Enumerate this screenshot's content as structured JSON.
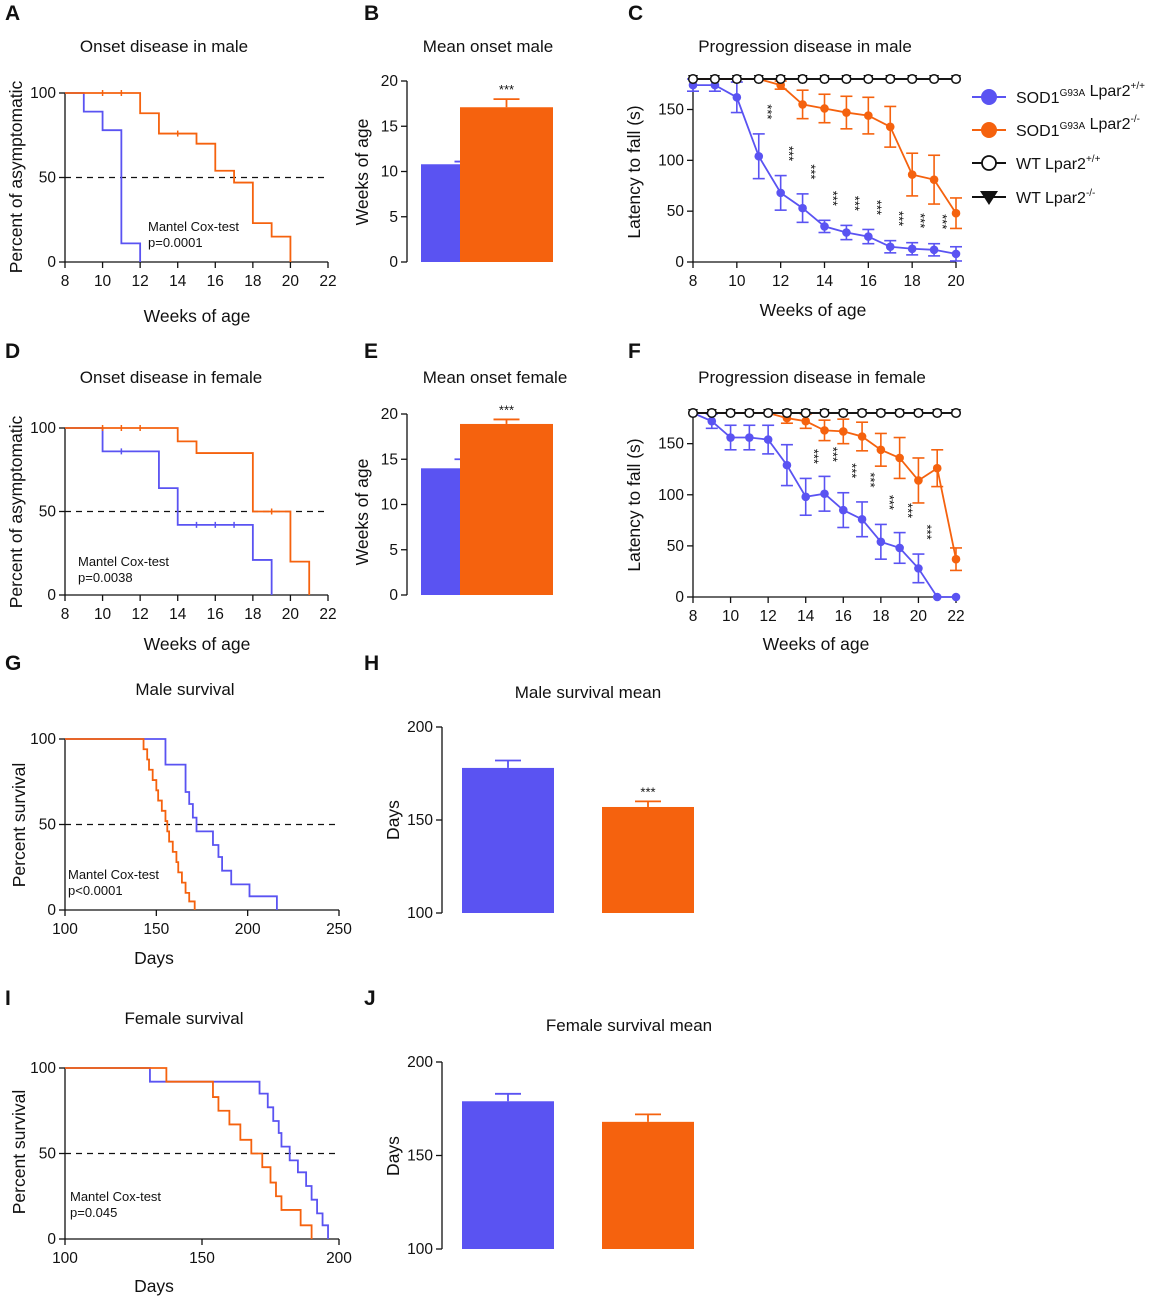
{
  "colors": {
    "blue": "#5a53f2",
    "orange": "#f5620e",
    "black": "#111111"
  },
  "legend": {
    "items": [
      {
        "prefix": "SOD1",
        "sup1": "G93A",
        "mid": " Lpar2",
        "sup2": "+/+",
        "color": "#5a53f2",
        "marker": "filled-circle"
      },
      {
        "prefix": "SOD1",
        "sup1": "G93A",
        "mid": " Lpar2",
        "sup2": "-/-",
        "color": "#f5620e",
        "marker": "filled-circle"
      },
      {
        "prefix": "WT Lpar2",
        "sup1": "",
        "mid": "",
        "sup2": "+/+",
        "color": "#111111",
        "marker": "open-circle"
      },
      {
        "prefix": "WT Lpar2",
        "sup1": "",
        "mid": "",
        "sup2": "-/-",
        "color": "#111111",
        "marker": "filled-triangle-down"
      }
    ]
  },
  "chart_data": [
    {
      "id": "A",
      "letter": "A",
      "type": "line",
      "subtype": "kaplan-meier",
      "title": "Onset disease in male",
      "xlabel": "Weeks of age",
      "ylabel": "Percent of asymptomatic",
      "xlim": [
        8,
        22
      ],
      "ylim": [
        0,
        100
      ],
      "xticks": [
        "8",
        "10",
        "12",
        "14",
        "16",
        "18",
        "20",
        "22"
      ],
      "yticks": [
        "0",
        "50",
        "100"
      ],
      "reference_line": 50,
      "annotation": [
        "Mantel Cox-test",
        "p=0.0001"
      ],
      "series": [
        {
          "name": "SOD1G93A Lpar2+/+",
          "color": "blue",
          "steps": [
            [
              8,
              100
            ],
            [
              9,
              89
            ],
            [
              10,
              78
            ],
            [
              11,
              11
            ],
            [
              12,
              0
            ]
          ],
          "censor": []
        },
        {
          "name": "SOD1G93A Lpar2-/-",
          "color": "orange",
          "steps": [
            [
              8,
              100
            ],
            [
              12,
              88
            ],
            [
              13,
              76
            ],
            [
              15,
              70
            ],
            [
              16,
              54
            ],
            [
              17,
              47
            ],
            [
              18,
              23
            ],
            [
              19,
              15
            ],
            [
              20,
              0
            ]
          ],
          "censor": [
            [
              10,
              100
            ],
            [
              11,
              100
            ],
            [
              14,
              76
            ]
          ]
        }
      ]
    },
    {
      "id": "B",
      "letter": "B",
      "type": "bar",
      "title": "Mean onset male",
      "xlabel": "",
      "ylabel": "Weeks of age",
      "ylim": [
        0,
        20
      ],
      "yticks": [
        "0",
        "5",
        "10",
        "15",
        "20"
      ],
      "bars": [
        {
          "name": "SOD1G93A Lpar2+/+",
          "color": "blue",
          "value": 10.8,
          "err": 0.3,
          "star": ""
        },
        {
          "name": "SOD1G93A Lpar2-/-",
          "color": "orange",
          "value": 17.1,
          "err": 0.9,
          "star": "***"
        }
      ]
    },
    {
      "id": "C",
      "letter": "C",
      "type": "line",
      "title": "Progression disease in male",
      "xlabel": "Weeks of age",
      "ylabel": "Latency to fall (s)",
      "xlim": [
        8,
        20
      ],
      "ylim": [
        0,
        180
      ],
      "xticks": [
        "8",
        "10",
        "12",
        "14",
        "16",
        "18",
        "20"
      ],
      "yticks": [
        "0",
        "50",
        "100",
        "150"
      ],
      "x": [
        8,
        9,
        10,
        11,
        12,
        13,
        14,
        15,
        16,
        17,
        18,
        19,
        20
      ],
      "series": [
        {
          "name": "WT Lpar2-/-",
          "color": "black",
          "marker": "filled-triangle-down",
          "values": [
            180,
            180,
            180,
            180,
            180,
            180,
            180,
            180,
            180,
            180,
            180,
            180,
            180
          ],
          "err": []
        },
        {
          "name": "WT Lpar2+/+",
          "color": "black",
          "marker": "open-circle",
          "values": [
            180,
            180,
            180,
            180,
            180,
            180,
            180,
            180,
            180,
            180,
            180,
            180,
            180
          ],
          "err": []
        },
        {
          "name": "SOD1G93A Lpar2-/-",
          "color": "orange",
          "marker": "filled-circle",
          "values": [
            180,
            180,
            180,
            180,
            174,
            155,
            151,
            147,
            144,
            133,
            86,
            81,
            48
          ],
          "err": [
            0,
            0,
            0,
            0,
            4,
            14,
            14,
            16,
            18,
            20,
            21,
            24,
            15
          ]
        },
        {
          "name": "SOD1G93A Lpar2+/+",
          "color": "blue",
          "marker": "filled-circle",
          "values": [
            174,
            174,
            162,
            104,
            68,
            53,
            35,
            29,
            25,
            15,
            13,
            12,
            8
          ],
          "err": [
            6,
            6,
            15,
            22,
            17,
            14,
            6,
            7,
            7,
            6,
            6,
            6,
            7
          ]
        }
      ],
      "star_label": "***",
      "stars_x": [
        11,
        12,
        13,
        14,
        15,
        16,
        17,
        18,
        19
      ]
    },
    {
      "id": "D",
      "letter": "D",
      "type": "line",
      "subtype": "kaplan-meier",
      "title": "Onset disease in female",
      "xlabel": "Weeks of age",
      "ylabel": "Percent of asymptomatic",
      "xlim": [
        8,
        22
      ],
      "ylim": [
        0,
        100
      ],
      "xticks": [
        "8",
        "10",
        "12",
        "14",
        "16",
        "18",
        "20",
        "22"
      ],
      "yticks": [
        "0",
        "50",
        "100"
      ],
      "reference_line": 50,
      "annotation": [
        "Mantel Cox-test",
        "p=0.0038"
      ],
      "series": [
        {
          "name": "SOD1G93A Lpar2+/+",
          "color": "blue",
          "steps": [
            [
              8,
              100
            ],
            [
              10,
              86
            ],
            [
              13,
              64
            ],
            [
              14,
              42
            ],
            [
              18,
              21
            ],
            [
              19,
              0
            ]
          ],
          "censor": [
            [
              11,
              86
            ],
            [
              15,
              42
            ],
            [
              16,
              42
            ],
            [
              17,
              42
            ]
          ]
        },
        {
          "name": "SOD1G93A Lpar2-/-",
          "color": "orange",
          "steps": [
            [
              8,
              100
            ],
            [
              14,
              92
            ],
            [
              15,
              85
            ],
            [
              18,
              50
            ],
            [
              20,
              20
            ],
            [
              21,
              0
            ]
          ],
          "censor": [
            [
              10,
              100
            ],
            [
              11,
              100
            ],
            [
              12,
              100
            ],
            [
              19,
              50
            ]
          ]
        }
      ]
    },
    {
      "id": "E",
      "letter": "E",
      "type": "bar",
      "title": "Mean onset female",
      "xlabel": "",
      "ylabel": "Weeks of age",
      "ylim": [
        0,
        20
      ],
      "yticks": [
        "0",
        "5",
        "10",
        "15",
        "20"
      ],
      "bars": [
        {
          "name": "SOD1G93A Lpar2+/+",
          "color": "blue",
          "value": 14.0,
          "err": 1.0,
          "star": ""
        },
        {
          "name": "SOD1G93A Lpar2-/-",
          "color": "orange",
          "value": 18.9,
          "err": 0.5,
          "star": "***"
        }
      ]
    },
    {
      "id": "F",
      "letter": "F",
      "type": "line",
      "title": "Progression disease in female",
      "xlabel": "Weeks of age",
      "ylabel": "Latency to fall (s)",
      "xlim": [
        8,
        22
      ],
      "ylim": [
        0,
        180
      ],
      "xticks": [
        "8",
        "10",
        "12",
        "14",
        "16",
        "18",
        "20",
        "22"
      ],
      "yticks": [
        "0",
        "50",
        "100",
        "150"
      ],
      "x": [
        8,
        9,
        10,
        11,
        12,
        13,
        14,
        15,
        16,
        17,
        18,
        19,
        20,
        21,
        22
      ],
      "series": [
        {
          "name": "WT Lpar2-/-",
          "color": "black",
          "marker": "filled-triangle-down",
          "values": [
            180,
            180,
            180,
            180,
            180,
            180,
            180,
            180,
            180,
            180,
            180,
            180,
            180,
            180,
            180
          ],
          "err": []
        },
        {
          "name": "WT Lpar2+/+",
          "color": "black",
          "marker": "open-circle",
          "values": [
            180,
            180,
            180,
            180,
            180,
            180,
            180,
            180,
            180,
            180,
            180,
            180,
            180,
            180,
            180
          ],
          "err": []
        },
        {
          "name": "SOD1G93A Lpar2-/-",
          "color": "orange",
          "marker": "filled-circle",
          "values": [
            180,
            180,
            180,
            180,
            180,
            175,
            172,
            163,
            162,
            157,
            144,
            136,
            114,
            126,
            37
          ],
          "err": [
            0,
            0,
            0,
            0,
            0,
            5,
            7,
            10,
            12,
            14,
            16,
            20,
            22,
            18,
            11
          ]
        },
        {
          "name": "SOD1G93A Lpar2+/+",
          "color": "blue",
          "marker": "filled-circle",
          "values": [
            180,
            172,
            156,
            156,
            154,
            129,
            98,
            101,
            85,
            76,
            54,
            48,
            28,
            0,
            0
          ],
          "err": [
            0,
            7,
            12,
            12,
            14,
            20,
            18,
            17,
            17,
            17,
            17,
            15,
            14,
            0,
            0
          ]
        }
      ],
      "star_label": "***",
      "stars_x": [
        14,
        15,
        16,
        17,
        18,
        19,
        20
      ]
    },
    {
      "id": "G",
      "letter": "G",
      "type": "line",
      "subtype": "kaplan-meier",
      "title": "Male survival",
      "xlabel": "Days",
      "ylabel": "Percent survival",
      "xlim": [
        100,
        250
      ],
      "ylim": [
        0,
        100
      ],
      "xticks": [
        "100",
        "150",
        "200",
        "250"
      ],
      "yticks": [
        "0",
        "50",
        "100"
      ],
      "reference_line": 50,
      "annotation": [
        "Mantel Cox-test",
        "p<0.0001"
      ],
      "series": [
        {
          "name": "SOD1G93A Lpar2+/+",
          "color": "blue",
          "steps": [
            [
              100,
              100
            ],
            [
              155,
              85
            ],
            [
              166,
              69
            ],
            [
              168,
              62
            ],
            [
              170,
              54
            ],
            [
              172,
              46
            ],
            [
              181,
              38
            ],
            [
              184,
              31
            ],
            [
              186,
              23
            ],
            [
              191,
              15
            ],
            [
              201,
              8
            ],
            [
              216,
              0
            ]
          ],
          "censor": []
        },
        {
          "name": "SOD1G93A Lpar2-/-",
          "color": "orange",
          "steps": [
            [
              100,
              100
            ],
            [
              143,
              94
            ],
            [
              145,
              88
            ],
            [
              146,
              82
            ],
            [
              148,
              76
            ],
            [
              150,
              70
            ],
            [
              151,
              64
            ],
            [
              153,
              58
            ],
            [
              155,
              52
            ],
            [
              156,
              46
            ],
            [
              157,
              40
            ],
            [
              159,
              34
            ],
            [
              161,
              28
            ],
            [
              162,
              22
            ],
            [
              164,
              16
            ],
            [
              166,
              10
            ],
            [
              168,
              5
            ],
            [
              171,
              0
            ]
          ],
          "censor": []
        }
      ]
    },
    {
      "id": "H",
      "letter": "H",
      "type": "bar",
      "title": "Male survival mean",
      "xlabel": "",
      "ylabel": "Days",
      "ylim": [
        100,
        200
      ],
      "yticks": [
        "100",
        "150",
        "200"
      ],
      "bars": [
        {
          "name": "SOD1G93A Lpar2+/+",
          "color": "blue",
          "value": 178,
          "err": 4,
          "star": ""
        },
        {
          "name": "SOD1G93A Lpar2-/-",
          "color": "orange",
          "value": 157,
          "err": 3,
          "star": "***"
        }
      ]
    },
    {
      "id": "I",
      "letter": "I",
      "type": "line",
      "subtype": "kaplan-meier",
      "title": "Female survival",
      "xlabel": "Days",
      "ylabel": "Percent survival",
      "xlim": [
        100,
        200
      ],
      "ylim": [
        0,
        100
      ],
      "xticks": [
        "100",
        "150",
        "200"
      ],
      "yticks": [
        "0",
        "50",
        "100"
      ],
      "reference_line": 50,
      "annotation": [
        "Mantel Cox-test",
        "p=0.045"
      ],
      "series": [
        {
          "name": "SOD1G93A Lpar2+/+",
          "color": "blue",
          "steps": [
            [
              100,
              100
            ],
            [
              131,
              92
            ],
            [
              171,
              85
            ],
            [
              174,
              77
            ],
            [
              176,
              69
            ],
            [
              178,
              62
            ],
            [
              179,
              54
            ],
            [
              182,
              46
            ],
            [
              185,
              39
            ],
            [
              188,
              31
            ],
            [
              190,
              23
            ],
            [
              192,
              15
            ],
            [
              194,
              8
            ],
            [
              196,
              0
            ]
          ],
          "censor": []
        },
        {
          "name": "SOD1G93A Lpar2-/-",
          "color": "orange",
          "steps": [
            [
              100,
              100
            ],
            [
              137,
              92
            ],
            [
              154,
              83
            ],
            [
              156,
              75
            ],
            [
              160,
              67
            ],
            [
              164,
              58
            ],
            [
              168,
              50
            ],
            [
              172,
              42
            ],
            [
              175,
              33
            ],
            [
              177,
              25
            ],
            [
              179,
              17
            ],
            [
              186,
              8
            ],
            [
              190,
              0
            ]
          ],
          "censor": []
        }
      ]
    },
    {
      "id": "J",
      "letter": "J",
      "type": "bar",
      "title": "Female survival mean",
      "xlabel": "",
      "ylabel": "Days",
      "ylim": [
        100,
        200
      ],
      "yticks": [
        "100",
        "150",
        "200"
      ],
      "bars": [
        {
          "name": "SOD1G93A Lpar2+/+",
          "color": "blue",
          "value": 179,
          "err": 4,
          "star": ""
        },
        {
          "name": "SOD1G93A Lpar2-/-",
          "color": "orange",
          "value": 168,
          "err": 4,
          "star": ""
        }
      ]
    }
  ]
}
